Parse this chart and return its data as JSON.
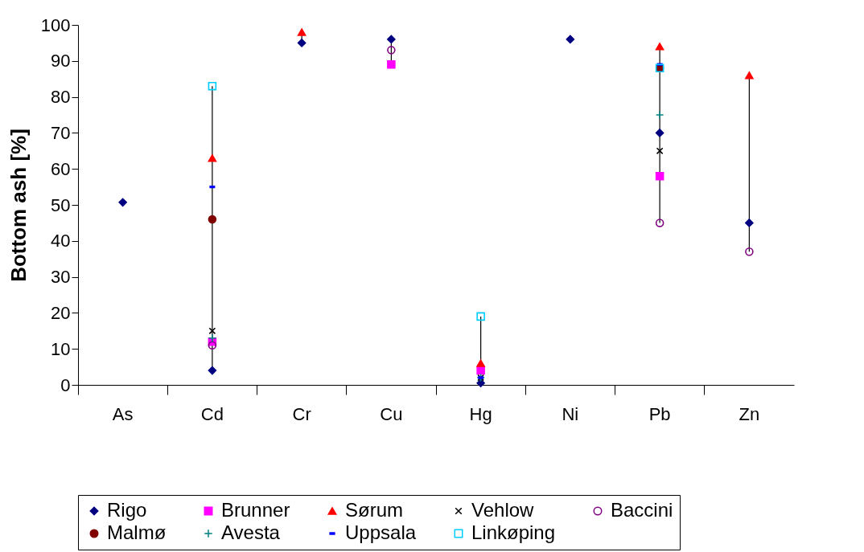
{
  "chart_data": {
    "type": "scatter",
    "ylabel": "Bottom ash [%]",
    "categories": [
      "As",
      "Cd",
      "Cr",
      "Cu",
      "Hg",
      "Ni",
      "Pb",
      "Zn"
    ],
    "ylim": [
      0,
      100
    ],
    "yticks": [
      0,
      10,
      20,
      30,
      40,
      50,
      60,
      70,
      80,
      90,
      100
    ],
    "legend": "bottom",
    "series": [
      {
        "name": "Rigo",
        "color": "#000080",
        "marker": "diamond",
        "values": [
          50.7,
          4,
          95,
          96,
          0.5,
          96,
          70,
          45
        ]
      },
      {
        "name": "Brunner",
        "color": "#ff00ff",
        "marker": "square",
        "values": [
          null,
          12,
          null,
          89,
          4,
          null,
          58,
          null
        ]
      },
      {
        "name": "Sørum",
        "color": "#ff0000",
        "marker": "triangle",
        "values": [
          null,
          63,
          98,
          null,
          6,
          null,
          94,
          86
        ]
      },
      {
        "name": "Vehlow",
        "color": "#000000",
        "marker": "cross",
        "values": [
          null,
          15,
          null,
          null,
          2,
          null,
          65,
          null
        ]
      },
      {
        "name": "Baccini",
        "color": "#800080",
        "marker": "circle-open",
        "values": [
          null,
          11,
          null,
          93,
          null,
          null,
          45,
          37
        ]
      },
      {
        "name": "Malmø",
        "color": "#800000",
        "marker": "circle",
        "values": [
          null,
          46,
          null,
          null,
          null,
          null,
          88,
          null
        ]
      },
      {
        "name": "Avesta",
        "color": "#008080",
        "marker": "plus",
        "values": [
          null,
          13,
          null,
          null,
          2,
          null,
          75,
          null
        ]
      },
      {
        "name": "Uppsala",
        "color": "#0000ff",
        "values": [
          null,
          55,
          null,
          null,
          2,
          null,
          89,
          null
        ]
      },
      {
        "name": "Linkøping",
        "color": "#00ccff",
        "marker": "square-open",
        "values": [
          null,
          83,
          null,
          null,
          19,
          null,
          88,
          null
        ]
      }
    ]
  }
}
